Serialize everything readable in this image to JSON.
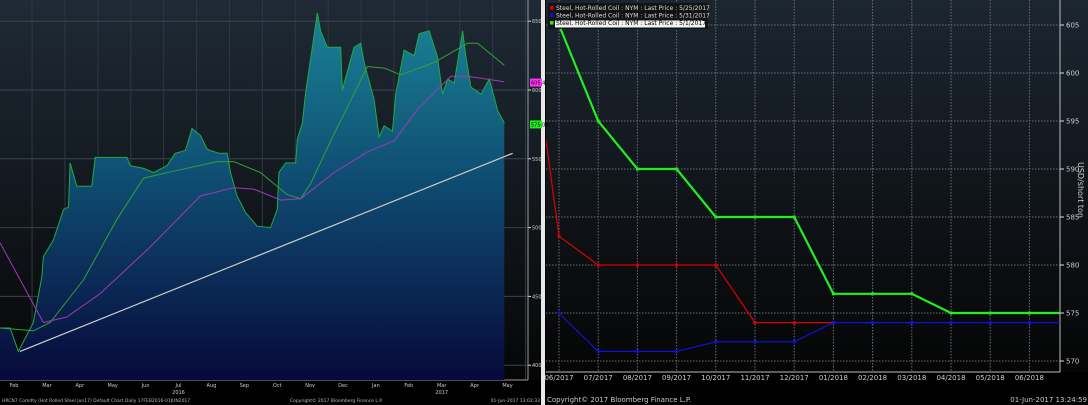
{
  "chart_data": [
    {
      "type": "area",
      "title": "HRCN7 Comdty (Hot Rolled Steel Jun17) Default Chart Daily 17FEB2016-01JUN2017",
      "footer_copyright": "Copyright© 2017 Bloomberg Finance L.P.",
      "footer_timestamp": "01-Jun-2017 13:02:33",
      "xlabel": "",
      "ylabel": "",
      "ylim": [
        390,
        665
      ],
      "yticks": [
        400,
        450,
        500,
        550,
        600,
        650
      ],
      "grid": true,
      "x_unit": "months since start of chart",
      "month_labels": [
        "Feb",
        "Mar",
        "Apr",
        "May",
        "Jun",
        "Jul",
        "Aug",
        "Sep",
        "Oct",
        "Nov",
        "Dec",
        "Jan",
        "Feb",
        "Mar",
        "Apr",
        "May"
      ],
      "year_labels": [
        {
          "label": "2016",
          "month_index": 5
        },
        {
          "label": "2017",
          "month_index": 13
        }
      ],
      "last_value_tags": [
        {
          "label": "605.4",
          "color": "#ff33ff"
        },
        {
          "label": "575.00",
          "color": "#22ee22"
        }
      ],
      "series": [
        {
          "name": "Price",
          "color": "#22aa44",
          "points": [
            [
              0,
              427
            ],
            [
              0.3,
              427
            ],
            [
              0.55,
              410
            ],
            [
              1.0,
              431
            ],
            [
              1.25,
              464
            ],
            [
              1.3,
              479
            ],
            [
              1.6,
              491
            ],
            [
              1.9,
              513
            ],
            [
              2.05,
              515
            ],
            [
              2.1,
              547
            ],
            [
              2.3,
              530
            ],
            [
              2.75,
              530
            ],
            [
              2.85,
              551
            ],
            [
              3.8,
              551
            ],
            [
              3.9,
              545
            ],
            [
              4.3,
              543
            ],
            [
              4.6,
              540
            ],
            [
              5.0,
              545
            ],
            [
              5.25,
              554
            ],
            [
              5.55,
              556
            ],
            [
              5.75,
              572
            ],
            [
              6.0,
              567
            ],
            [
              6.2,
              557
            ],
            [
              6.55,
              554
            ],
            [
              6.8,
              554
            ],
            [
              6.9,
              540
            ],
            [
              7.1,
              523
            ],
            [
              7.35,
              511
            ],
            [
              7.7,
              501
            ],
            [
              8.1,
              500
            ],
            [
              8.3,
              513
            ],
            [
              8.35,
              540
            ],
            [
              8.55,
              547
            ],
            [
              8.85,
              547
            ],
            [
              8.9,
              564
            ],
            [
              9.05,
              576
            ],
            [
              9.15,
              598
            ],
            [
              9.35,
              631
            ],
            [
              9.5,
              656
            ],
            [
              9.6,
              643
            ],
            [
              9.8,
              631
            ],
            [
              10.2,
              631
            ],
            [
              10.25,
              600
            ],
            [
              10.6,
              631
            ],
            [
              10.8,
              634
            ],
            [
              10.9,
              620
            ],
            [
              11.2,
              593
            ],
            [
              11.35,
              566
            ],
            [
              11.5,
              574
            ],
            [
              11.75,
              570
            ],
            [
              11.85,
              597
            ],
            [
              12.1,
              629
            ],
            [
              12.4,
              625
            ],
            [
              12.55,
              641
            ],
            [
              12.85,
              643
            ],
            [
              13.1,
              624
            ],
            [
              13.25,
              597
            ],
            [
              13.4,
              608
            ],
            [
              13.6,
              605
            ],
            [
              13.85,
              643
            ],
            [
              13.95,
              624
            ],
            [
              14.1,
              602
            ],
            [
              14.4,
              597
            ],
            [
              14.65,
              608
            ],
            [
              14.9,
              585
            ],
            [
              15.1,
              576
            ]
          ]
        },
        {
          "name": "Moving Average (short)",
          "color": "#2fa33a",
          "points": [
            [
              0,
              427
            ],
            [
              1.0,
              425
            ],
            [
              1.5,
              431
            ],
            [
              2.5,
              462
            ],
            [
              3.5,
              506
            ],
            [
              4.3,
              536
            ],
            [
              5.2,
              541
            ],
            [
              6.5,
              548
            ],
            [
              7.0,
              548
            ],
            [
              7.8,
              540
            ],
            [
              8.6,
              524
            ],
            [
              9.0,
              521
            ],
            [
              9.3,
              532
            ],
            [
              10.0,
              568
            ],
            [
              11.0,
              617
            ],
            [
              11.5,
              616
            ],
            [
              12.0,
              611
            ],
            [
              13.0,
              620
            ],
            [
              14.0,
              634
            ],
            [
              14.3,
              634
            ],
            [
              15.1,
              618
            ]
          ]
        },
        {
          "name": "Moving Average (long)",
          "color": "#a03ab8",
          "points": [
            [
              0,
              489
            ],
            [
              1.3,
              431
            ],
            [
              2.0,
              435
            ],
            [
              3.0,
              452
            ],
            [
              4.5,
              486
            ],
            [
              6.0,
              523
            ],
            [
              7.0,
              529
            ],
            [
              7.6,
              528
            ],
            [
              8.4,
              520
            ],
            [
              9.0,
              521
            ],
            [
              10.0,
              540
            ],
            [
              11.0,
              555
            ],
            [
              11.8,
              563
            ],
            [
              12.5,
              586
            ],
            [
              13.5,
              610
            ],
            [
              14.0,
              610
            ],
            [
              15.1,
              606
            ]
          ]
        },
        {
          "name": "Trendline",
          "color": "#d0d0d0",
          "points": [
            [
              0.6,
              410
            ],
            [
              15.35,
              554
            ]
          ]
        }
      ]
    },
    {
      "type": "line",
      "xlabel": "",
      "ylabel": "USD/short ton",
      "ylim": [
        568,
        608
      ],
      "yticks": [
        570,
        575,
        580,
        585,
        590,
        595,
        600,
        605
      ],
      "grid": true,
      "legend_position": "top-left",
      "categories": [
        "06/2017",
        "07/2017",
        "08/2017",
        "09/2017",
        "10/2017",
        "11/2017",
        "12/2017",
        "01/2018",
        "02/2018",
        "03/2018",
        "04/2018",
        "05/2018",
        "06/2018"
      ],
      "footer_copyright": "Copyright© 2017 Bloomberg Finance L.P.",
      "footer_timestamp": "01-Jun-2017 13:24:59",
      "series": [
        {
          "name": "Steel, Hot-Rolled Coil : NYM : Last Price : 5/25/2017",
          "color": "#dd0000",
          "lead_in": 593,
          "values": [
            583,
            580,
            580,
            580,
            580,
            574,
            574,
            574,
            null,
            null,
            null,
            null,
            null
          ]
        },
        {
          "name": "Steel, Hot-Rolled Coil : NYM : Last Price : 5/31/2017",
          "color": "#1111dd",
          "values": [
            575,
            571,
            571,
            571,
            572,
            572,
            572,
            574,
            574,
            574,
            574,
            574,
            574
          ]
        },
        {
          "name": "Steel, Hot-Rolled Coil : NYM : Last Price : 5/1/2017",
          "color": "#22ee22",
          "values": [
            605,
            595,
            590,
            590,
            585,
            585,
            585,
            577,
            577,
            577,
            575,
            575,
            575
          ]
        }
      ]
    }
  ]
}
